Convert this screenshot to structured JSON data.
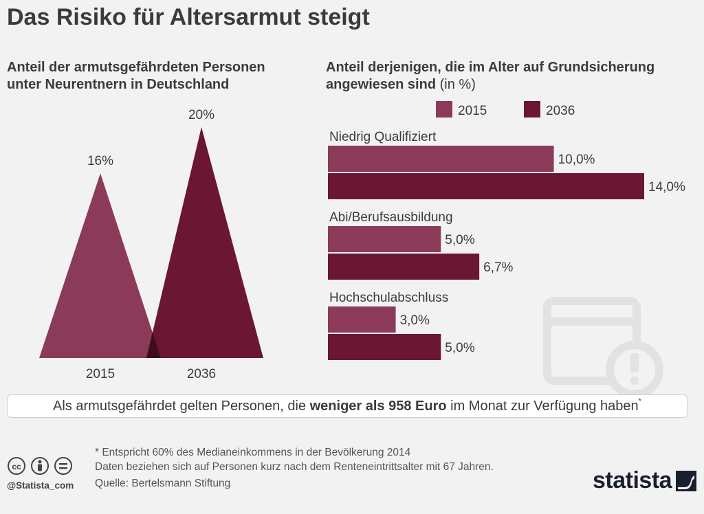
{
  "title": "Das Risiko für Altersarmut steigt",
  "left_subtitle": [
    "Anteil der armutsgefährdeten Personen",
    "unter Neurentnern in Deutschland"
  ],
  "right_subtitle": [
    "Anteil derjenigen, die im Alter auf Grundsicherung",
    "angewiesen sind"
  ],
  "right_subtitle_unit": "(in %)",
  "colors": {
    "y2015": "#8b3a5a",
    "y2036": "#6b1633",
    "overlap": "#3e0c1a"
  },
  "chart_data": [
    {
      "type": "area",
      "categories": [
        "2015",
        "2036"
      ],
      "values": [
        16,
        20
      ],
      "labels": [
        "16%",
        "20%"
      ]
    },
    {
      "type": "bar",
      "legend": [
        "2015",
        "2036"
      ],
      "categories": [
        "Niedrig Qualifiziert",
        "Abi/Berufsausbildung",
        "Hochschulabschluss"
      ],
      "series": [
        {
          "name": "2015",
          "values": [
            10.0,
            5.0,
            3.0
          ],
          "labels": [
            "10,0%",
            "5,0%",
            "3,0%"
          ]
        },
        {
          "name": "2036",
          "values": [
            14.0,
            6.7,
            5.0
          ],
          "labels": [
            "14,0%",
            "6,7%",
            "5,0%"
          ]
        }
      ]
    }
  ],
  "note": {
    "before": "Als armutsgefährdet gelten Personen, die ",
    "bold": "weniger als 958 Euro",
    "after": " im Monat zur Verfügung haben",
    "mark": "*"
  },
  "footnotes": [
    "* Entspricht 60% des Medianeinkommens in der Bevölkerung 2014",
    "Daten beziehen sich auf Personen kurz nach dem Renteneintrittsalter mit 67 Jahren."
  ],
  "source": "Quelle: Bertelsmann Stiftung",
  "handle": "@Statista_com",
  "brand": "statista",
  "icons": [
    "cc-icon",
    "person-icon",
    "equals-icon"
  ]
}
